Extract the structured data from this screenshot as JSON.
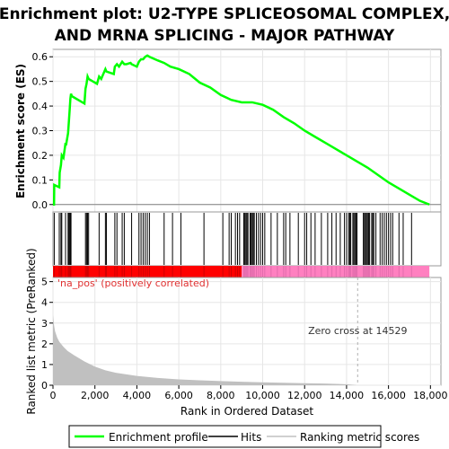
{
  "title_line1": "Enrichment plot: U2-TYPE SPLICEOSOMAL COMPLEX,",
  "title_line2": "AND MRNA SPLICING - MAJOR PATHWAY",
  "colors": {
    "enrichment": "#00ff00",
    "hits": "#000000",
    "ranking_fill": "#c0c0c0",
    "pos_label": "#e03030",
    "zero_cross_line": "#b0b0b0",
    "heat_red": "#ff0000",
    "heat_pink": "#ff80c0"
  },
  "legend": {
    "enrichment": "Enrichment profile",
    "hits": "Hits",
    "ranking": "Ranking metric scores"
  },
  "chart_data": [
    {
      "type": "line",
      "name": "enrichment-profile",
      "ylabel": "Enrichment score (ES)",
      "xlim": [
        0,
        18500
      ],
      "ylim": [
        -0.03,
        0.63
      ],
      "yticks": [
        0.0,
        0.1,
        0.2,
        0.3,
        0.4,
        0.5,
        0.6
      ],
      "grid": true,
      "series": [
        {
          "name": "Enrichment profile",
          "x": [
            0,
            50,
            60,
            300,
            320,
            380,
            420,
            500,
            600,
            620,
            720,
            760,
            800,
            830,
            860,
            900,
            1500,
            1550,
            1600,
            1650,
            1700,
            2100,
            2200,
            2300,
            2500,
            2550,
            2900,
            2950,
            3050,
            3150,
            3300,
            3400,
            3500,
            3700,
            3750,
            4000,
            4100,
            4200,
            4300,
            4400,
            4500,
            4600,
            5000,
            5300,
            5600,
            6000,
            6500,
            7000,
            7500,
            8000,
            8500,
            9000,
            9500,
            10000,
            10500,
            11000,
            11500,
            12000,
            12500,
            13000,
            13500,
            14000,
            14500,
            15000,
            15500,
            16000,
            16500,
            17000,
            17500,
            17950
          ],
          "y": [
            0.0,
            0.0,
            0.08,
            0.07,
            0.13,
            0.16,
            0.2,
            0.19,
            0.25,
            0.24,
            0.29,
            0.34,
            0.39,
            0.43,
            0.45,
            0.44,
            0.41,
            0.47,
            0.49,
            0.52,
            0.51,
            0.49,
            0.52,
            0.51,
            0.55,
            0.54,
            0.53,
            0.56,
            0.57,
            0.56,
            0.58,
            0.57,
            0.57,
            0.575,
            0.57,
            0.56,
            0.58,
            0.59,
            0.59,
            0.6,
            0.605,
            0.6,
            0.585,
            0.575,
            0.56,
            0.55,
            0.53,
            0.495,
            0.475,
            0.445,
            0.425,
            0.415,
            0.415,
            0.405,
            0.385,
            0.355,
            0.33,
            0.3,
            0.275,
            0.25,
            0.225,
            0.2,
            0.175,
            0.15,
            0.12,
            0.09,
            0.065,
            0.04,
            0.015,
            0.0
          ]
        }
      ]
    },
    {
      "type": "scatter",
      "name": "hits",
      "x": [
        60,
        300,
        380,
        420,
        600,
        720,
        760,
        800,
        830,
        860,
        1550,
        1600,
        1650,
        1700,
        2200,
        2500,
        2550,
        2950,
        3050,
        3300,
        3400,
        3750,
        4100,
        4200,
        4300,
        4400,
        4500,
        4600,
        5300,
        5700,
        6100,
        7200,
        8100,
        8400,
        8500,
        8700,
        8800,
        8900,
        9100,
        9150,
        9200,
        9250,
        9300,
        9400,
        9450,
        9500,
        9550,
        9600,
        9700,
        9800,
        9900,
        10000,
        10100,
        10400,
        10700,
        11000,
        11100,
        11300,
        11700,
        12000,
        12100,
        12300,
        12500,
        12800,
        13100,
        13300,
        13500,
        13700,
        13900,
        14000,
        14100,
        14150,
        14200,
        14300,
        14350,
        14400,
        14450,
        14500,
        14800,
        14850,
        14900,
        14950,
        15000,
        15050,
        15100,
        15200,
        15250,
        15300,
        15400,
        15600,
        15700,
        15800,
        15900,
        16000,
        16100,
        16200,
        16500,
        16700,
        17100
      ]
    },
    {
      "type": "area",
      "name": "ranking-metric",
      "ylabel": "Ranked list metric (PreRanked)",
      "xlabel": "Rank in Ordered Dataset",
      "xlim": [
        0,
        18500
      ],
      "ylim": [
        0,
        5.2
      ],
      "yticks": [
        0,
        1,
        2,
        3,
        4,
        5
      ],
      "xticks": [
        0,
        2000,
        4000,
        6000,
        8000,
        10000,
        12000,
        14000,
        16000,
        18000
      ],
      "grid": true,
      "x": [
        0,
        50,
        100,
        200,
        300,
        500,
        700,
        1000,
        1500,
        2000,
        2500,
        3000,
        4000,
        5000,
        6000,
        7000,
        8000,
        9000,
        10000,
        11000,
        12000,
        13000,
        14000,
        14529,
        15000,
        16000,
        17000,
        17950
      ],
      "y": [
        3.4,
        2.9,
        2.6,
        2.3,
        2.1,
        1.85,
        1.65,
        1.45,
        1.15,
        0.9,
        0.72,
        0.6,
        0.45,
        0.35,
        0.28,
        0.24,
        0.2,
        0.17,
        0.14,
        0.12,
        0.1,
        0.08,
        0.05,
        0.0,
        0.0,
        0.0,
        0.0,
        0.0
      ],
      "annotations": {
        "pos_label": "'na_pos' (positively correlated)",
        "zero_cross": "Zero cross at 14529"
      }
    }
  ]
}
